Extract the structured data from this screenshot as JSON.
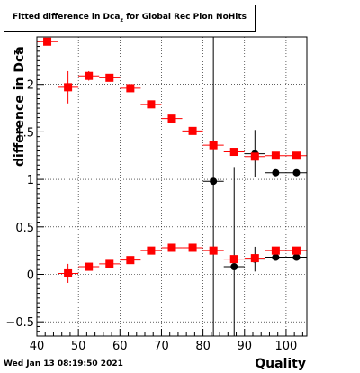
{
  "title": {
    "main": "Fitted difference in Dca",
    "sub": "z",
    "suffix": " for Global Rec Pion NoHits"
  },
  "footer": "Wed Jan 13 08:19:50 2021",
  "chart_data": {
    "type": "scatter",
    "xlabel": "Quality",
    "ylabel": "difference in Dca",
    "ylabel_sub": "z",
    "xlim": [
      40,
      105
    ],
    "ylim": [
      -0.65,
      2.5
    ],
    "xticks": [
      40,
      50,
      60,
      70,
      80,
      90,
      100
    ],
    "yticks": [
      -0.5,
      0,
      0.5,
      1,
      1.5,
      2
    ],
    "ytick_labels": [
      "−0.5",
      "0",
      "0.5",
      "1",
      "1.5",
      "2"
    ],
    "grid": true,
    "series": [
      {
        "color": "#000000",
        "points": [
          {
            "x": 82.5,
            "y": 0.98,
            "xerr": 2.5,
            "yerr": 1.65
          },
          {
            "x": 87.5,
            "y": 0.08,
            "xerr": 2.5,
            "yerr": 1.05
          },
          {
            "x": 92.5,
            "y": 0.16,
            "xerr": 2.5,
            "yerr": 0.13
          },
          {
            "x": 97.5,
            "y": 0.18,
            "xerr": 2.5,
            "yerr": 0.02
          },
          {
            "x": 102.5,
            "y": 0.18,
            "xerr": 2.5,
            "yerr": 0.02
          },
          {
            "x": 92.5,
            "y": 1.27,
            "xerr": 2.5,
            "yerr": 0.25
          },
          {
            "x": 97.5,
            "y": 1.07,
            "xerr": 2.5,
            "yerr": 0.02
          },
          {
            "x": 102.5,
            "y": 1.07,
            "xerr": 2.5,
            "yerr": 0.02
          }
        ]
      },
      {
        "color": "#ff0000",
        "points": [
          {
            "x": 42.5,
            "y": 2.45,
            "xerr": 2.5,
            "yerr": 0.0
          },
          {
            "x": 47.5,
            "y": 1.97,
            "xerr": 2.5,
            "yerr": 0.17
          },
          {
            "x": 52.5,
            "y": 2.09,
            "xerr": 2.5,
            "yerr": 0.05
          },
          {
            "x": 57.5,
            "y": 2.07,
            "xerr": 2.5,
            "yerr": 0.04
          },
          {
            "x": 62.5,
            "y": 1.96,
            "xerr": 2.5,
            "yerr": 0.03
          },
          {
            "x": 67.5,
            "y": 1.79,
            "xerr": 2.5,
            "yerr": 0.02
          },
          {
            "x": 72.5,
            "y": 1.64,
            "xerr": 2.5,
            "yerr": 0.02
          },
          {
            "x": 77.5,
            "y": 1.51,
            "xerr": 2.5,
            "yerr": 0.02
          },
          {
            "x": 82.5,
            "y": 1.36,
            "xerr": 2.5,
            "yerr": 0.02
          },
          {
            "x": 87.5,
            "y": 1.29,
            "xerr": 2.5,
            "yerr": 0.02
          },
          {
            "x": 92.5,
            "y": 1.24,
            "xerr": 2.5,
            "yerr": 0.02
          },
          {
            "x": 97.5,
            "y": 1.25,
            "xerr": 2.5,
            "yerr": 0.02
          },
          {
            "x": 102.5,
            "y": 1.25,
            "xerr": 2.5,
            "yerr": 0.02
          },
          {
            "x": 47.5,
            "y": 0.01,
            "xerr": 2.5,
            "yerr": 0.1
          },
          {
            "x": 52.5,
            "y": 0.08,
            "xerr": 2.5,
            "yerr": 0.04
          },
          {
            "x": 57.5,
            "y": 0.11,
            "xerr": 2.5,
            "yerr": 0.03
          },
          {
            "x": 62.5,
            "y": 0.15,
            "xerr": 2.5,
            "yerr": 0.03
          },
          {
            "x": 67.5,
            "y": 0.25,
            "xerr": 2.5,
            "yerr": 0.02
          },
          {
            "x": 72.5,
            "y": 0.28,
            "xerr": 2.5,
            "yerr": 0.02
          },
          {
            "x": 77.5,
            "y": 0.28,
            "xerr": 2.5,
            "yerr": 0.02
          },
          {
            "x": 82.5,
            "y": 0.25,
            "xerr": 2.5,
            "yerr": 0.02
          },
          {
            "x": 87.5,
            "y": 0.16,
            "xerr": 2.5,
            "yerr": 0.02
          },
          {
            "x": 92.5,
            "y": 0.17,
            "xerr": 2.5,
            "yerr": 0.02
          },
          {
            "x": 97.5,
            "y": 0.25,
            "xerr": 2.5,
            "yerr": 0.02
          },
          {
            "x": 102.5,
            "y": 0.25,
            "xerr": 2.5,
            "yerr": 0.02
          }
        ]
      }
    ]
  }
}
